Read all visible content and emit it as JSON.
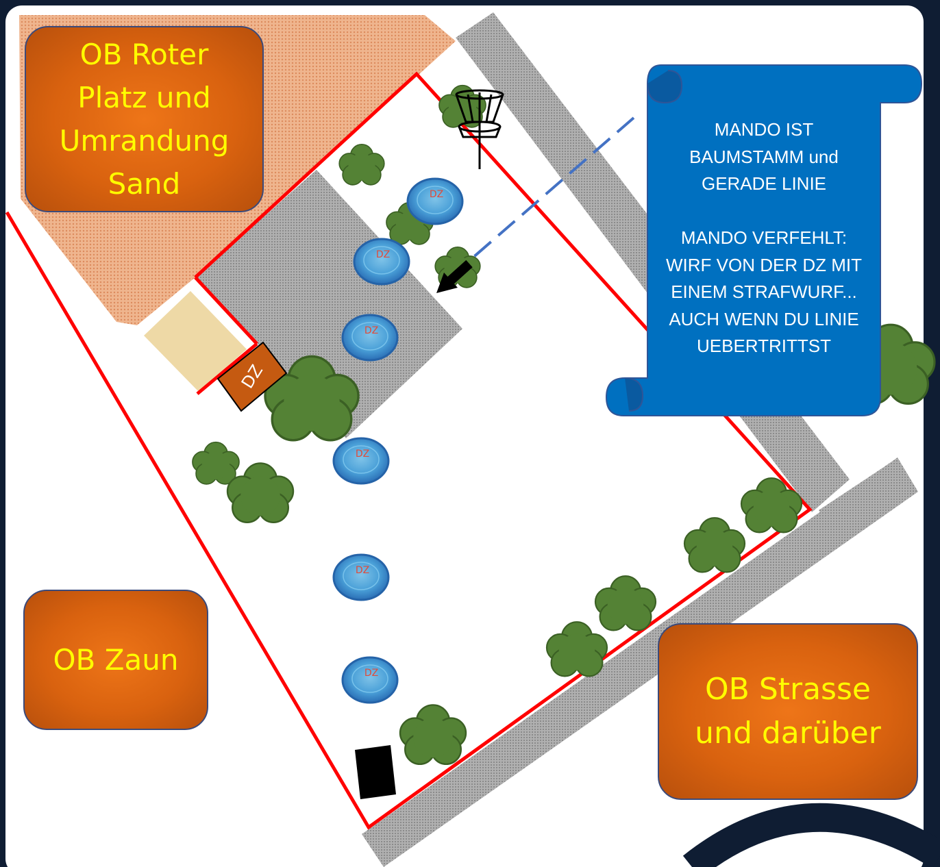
{
  "labels": {
    "ob_roter": "OB Roter\nPlatz und\nUmrandung\nSand",
    "ob_zaun": "OB Zaun",
    "ob_strasse": "OB Strasse\nund darüber",
    "drop_zone": "DZ"
  },
  "scroll": {
    "text": "MANDO IST\nBAUMSTAMM und\nGERADE LINIE\n\nMANDO VERFEHLT:\nWIRF VON DER DZ MIT\nEINEM STRAFWURF...\nAUCH WENN DU LINIE\nUEBERTRITTST"
  },
  "colors": {
    "background": "#0f1d33",
    "ob_fill": "#e06a12",
    "ob_text": "#ffff00",
    "scroll_fill": "#0070c0",
    "boundary_line": "#ff0000",
    "mando_line": "#4472c4",
    "tree": "#548235",
    "road": "#a6a6a6",
    "sand_area": "#eed9a6",
    "dz_fill": "#c55a11"
  },
  "icons": [
    "disc-golf-basket-icon",
    "tree-icon",
    "disc-icon",
    "arrow-icon",
    "tee-pad-icon"
  ]
}
